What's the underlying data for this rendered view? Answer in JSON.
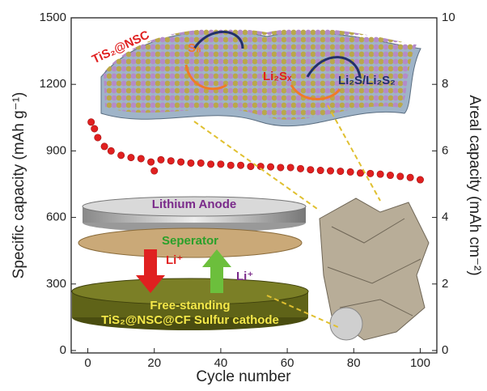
{
  "chart_data": {
    "type": "scatter",
    "x_label": "Cycle number",
    "y_label": "Specific capacity (mAh g⁻¹)",
    "y2_label": "Areal capacity (mAh cm⁻²)",
    "annotations": [
      "TiS₂@NSC",
      "S₈",
      "Li₂Sₓ",
      "Li₂S/Li₂S₂",
      "Lithium  Anode",
      "Seperator",
      "Li⁺",
      "Li⁺",
      "Free-standing",
      "TiS₂@NSC@CF Sulfur cathode"
    ],
    "x": [
      1,
      2,
      3,
      5,
      7,
      10,
      13,
      16,
      19,
      20,
      22,
      25,
      28,
      31,
      34,
      37,
      40,
      43,
      46,
      49,
      52,
      55,
      58,
      61,
      64,
      67,
      70,
      73,
      76,
      79,
      82,
      85,
      88,
      91,
      94,
      97,
      100
    ],
    "series": [
      {
        "name": "TiS₂@NSC",
        "color": "#e02020",
        "values": [
          1030,
          1000,
          960,
          920,
          900,
          880,
          870,
          865,
          850,
          810,
          860,
          855,
          850,
          845,
          845,
          840,
          840,
          835,
          835,
          830,
          830,
          828,
          825,
          825,
          820,
          815,
          812,
          810,
          808,
          805,
          800,
          798,
          795,
          790,
          785,
          780,
          770
        ]
      }
    ],
    "xlim": [
      -5,
      105
    ],
    "xticks": [
      0,
      20,
      40,
      60,
      80,
      100
    ],
    "ylim": [
      0,
      1500
    ],
    "yticks": [
      0,
      300,
      600,
      900,
      1200,
      1500
    ],
    "y2lim": [
      0,
      10
    ],
    "y2ticks": [
      0,
      2,
      4,
      6,
      8,
      10
    ]
  }
}
